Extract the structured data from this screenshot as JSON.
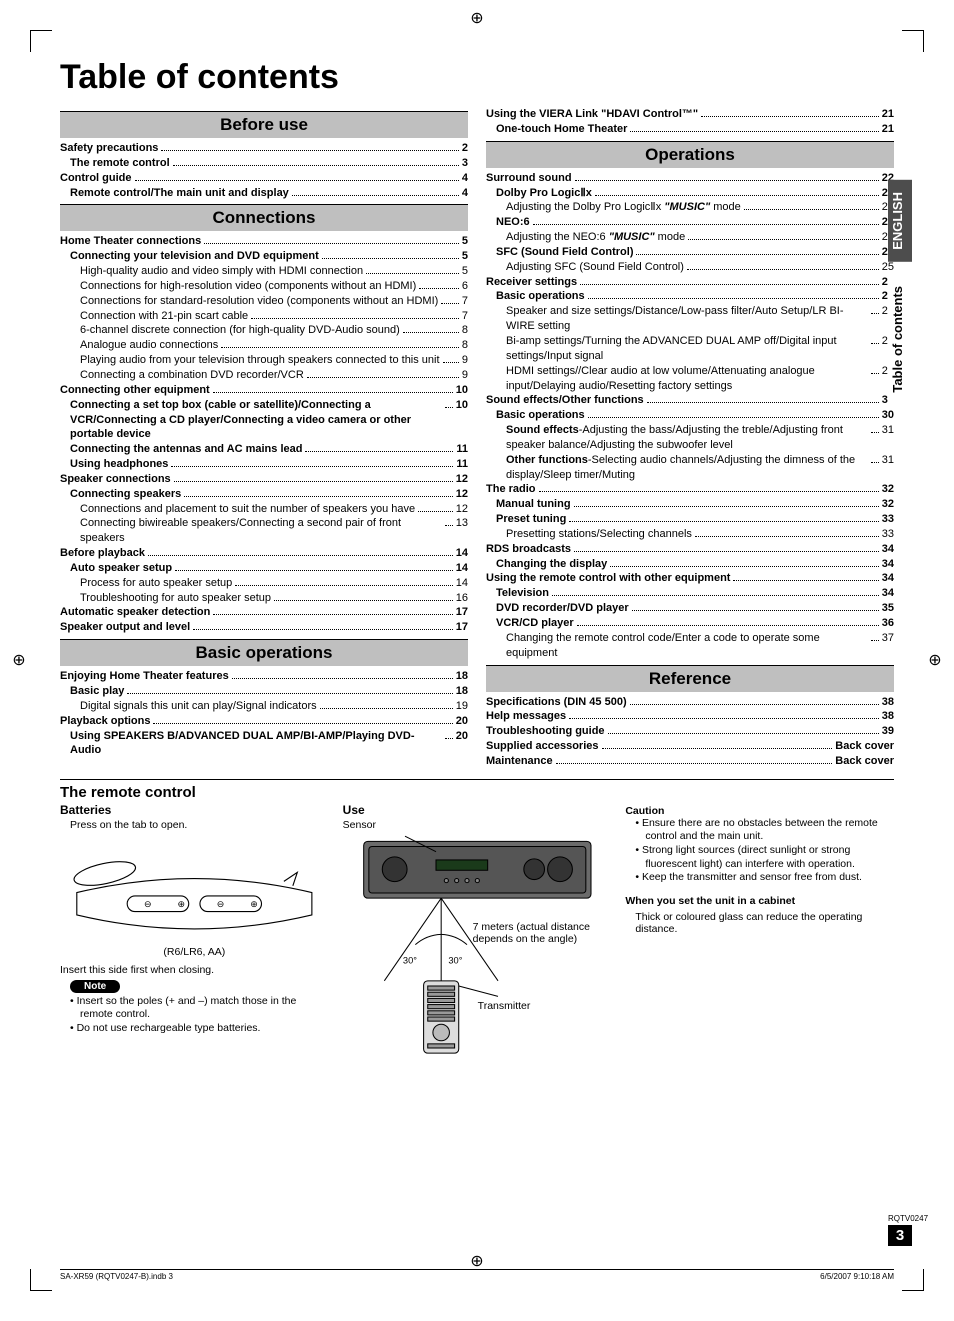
{
  "page_title": "Table of contents",
  "side_tabs": [
    {
      "label": "ENGLISH",
      "style": "dark"
    },
    {
      "label": "Table of contents",
      "style": "light"
    }
  ],
  "doc_ref": "RQTV0247",
  "page_number": "3",
  "footer": {
    "left": "SA-XR59 (RQTV0247-B).indb   3",
    "right": "6/5/2007   9:10:18 AM"
  },
  "sections_left": [
    {
      "heading": "Before use",
      "entries": [
        {
          "level": 0,
          "label": "Safety precautions",
          "page": "2"
        },
        {
          "level": 1,
          "label": "The remote control",
          "page": "3"
        },
        {
          "level": 0,
          "label": "Control guide",
          "page": "4"
        },
        {
          "level": 1,
          "label": "Remote control/The main unit and display",
          "page": "4"
        }
      ]
    },
    {
      "heading": "Connections",
      "entries": [
        {
          "level": 0,
          "label": "Home Theater connections",
          "page": "5"
        },
        {
          "level": 1,
          "label": "Connecting your television and DVD equipment",
          "page": "5"
        },
        {
          "level": 2,
          "label": "High-quality audio and video simply with HDMI connection",
          "page": "5"
        },
        {
          "level": 2,
          "label": "Connections for high-resolution video (components without an HDMI)",
          "page": "6"
        },
        {
          "level": 2,
          "label": "Connections for standard-resolution video (components without an HDMI)",
          "page": "7"
        },
        {
          "level": 2,
          "label": "Connection with 21-pin scart cable",
          "page": "7"
        },
        {
          "level": 2,
          "label": "6-channel discrete connection (for high-quality DVD-Audio sound)",
          "page": "8"
        },
        {
          "level": 2,
          "label": "Analogue audio connections",
          "page": "8"
        },
        {
          "level": 2,
          "label": "Playing audio from your television through speakers connected to this unit",
          "page": "9"
        },
        {
          "level": 2,
          "label": "Connecting a combination DVD recorder/VCR",
          "page": "9"
        },
        {
          "level": 0,
          "label": "Connecting other equipment",
          "page": "10"
        },
        {
          "level": 1,
          "label": "Connecting a set top box (cable or satellite)/Connecting a VCR/Connecting a CD player/Connecting a video camera or other portable device",
          "page": "10"
        },
        {
          "level": 1,
          "label": "Connecting the antennas and AC mains lead",
          "page": "11"
        },
        {
          "level": 1,
          "label": "Using headphones",
          "page": "11"
        },
        {
          "level": 0,
          "label": "Speaker connections",
          "page": "12"
        },
        {
          "level": 1,
          "label": "Connecting speakers",
          "page": "12"
        },
        {
          "level": 2,
          "label": "Connections and placement to suit the number of speakers you have",
          "page": "12"
        },
        {
          "level": 2,
          "label": "Connecting biwireable speakers/Connecting a second pair of front speakers",
          "page": "13"
        },
        {
          "level": 0,
          "label": "Before playback",
          "page": "14"
        },
        {
          "level": 1,
          "label": "Auto speaker setup",
          "page": "14"
        },
        {
          "level": 2,
          "label": "Process for auto speaker setup",
          "page": "14"
        },
        {
          "level": 2,
          "label": "Troubleshooting for auto speaker setup",
          "page": "16"
        },
        {
          "level": 0,
          "label": "Automatic speaker detection",
          "page": "17"
        },
        {
          "level": 0,
          "label": "Speaker output and level",
          "page": "17"
        }
      ]
    },
    {
      "heading": "Basic operations",
      "entries": [
        {
          "level": 0,
          "label": "Enjoying Home Theater features",
          "page": "18"
        },
        {
          "level": 1,
          "label": "Basic play",
          "page": "18"
        },
        {
          "level": 2,
          "label": "Digital signals this unit can play/Signal indicators",
          "page": "19"
        },
        {
          "level": 0,
          "label": "Playback options",
          "page": "20"
        },
        {
          "level": 1,
          "label": "Using SPEAKERS B/ADVANCED DUAL AMP/BI-AMP/Playing DVD-Audio",
          "page": "20"
        }
      ]
    }
  ],
  "sections_right": [
    {
      "heading": null,
      "entries": [
        {
          "level": 0,
          "label": "Using the VIERA Link \"HDAVI Control™\"",
          "page": "21"
        },
        {
          "level": 1,
          "label": "One-touch Home Theater",
          "page": "21"
        }
      ]
    },
    {
      "heading": "Operations",
      "entries": [
        {
          "level": 0,
          "label": "Surround sound",
          "page": "22"
        },
        {
          "level": 1,
          "label": "Dolby Pro LogicⅡx",
          "page": "22"
        },
        {
          "level": 2,
          "label_html": "Adjusting the Dolby Pro LogicⅡx <span class='ital'>\"MUSIC\"</span> mode",
          "page": "22"
        },
        {
          "level": 1,
          "label": "NEO:6",
          "page": "23"
        },
        {
          "level": 2,
          "label_html": "Adjusting the NEO:6 <span class='ital'>\"MUSIC\"</span> mode",
          "page": "23"
        },
        {
          "level": 1,
          "label": "SFC (Sound Field Control)",
          "page": "24"
        },
        {
          "level": 2,
          "label": "Adjusting SFC (Sound Field Control)",
          "page": "25"
        },
        {
          "level": 0,
          "label": "Receiver settings",
          "page": "26"
        },
        {
          "level": 1,
          "label": "Basic operations",
          "page": "26"
        },
        {
          "level": 2,
          "label": "Speaker and size settings/Distance/Low-pass filter/Auto Setup/LR BI-WIRE setting",
          "page": "27"
        },
        {
          "level": 2,
          "label": "Bi-amp settings/Turning the ADVANCED DUAL AMP off/Digital input settings/Input signal",
          "page": "28"
        },
        {
          "level": 2,
          "label": "HDMI settings//Clear audio at low volume/Attenuating analogue input/Delaying audio/Resetting factory settings",
          "page": "29"
        },
        {
          "level": 0,
          "label": "Sound effects/Other functions",
          "page": "30"
        },
        {
          "level": 1,
          "label": "Basic operations",
          "page": "30"
        },
        {
          "level": 2,
          "label_html": "<b>Sound effects</b>-Adjusting the bass/Adjusting the treble/Adjusting front speaker balance/Adjusting the subwoofer level",
          "page": "31"
        },
        {
          "level": 2,
          "label_html": "<b>Other functions</b>-Selecting audio channels/Adjusting the dimness of the display/Sleep timer/Muting",
          "page": "31"
        },
        {
          "level": 0,
          "label": "The radio",
          "page": "32"
        },
        {
          "level": 1,
          "label": "Manual tuning",
          "page": "32"
        },
        {
          "level": 1,
          "label": "Preset tuning",
          "page": "33"
        },
        {
          "level": 2,
          "label": "Presetting stations/Selecting channels",
          "page": "33"
        },
        {
          "level": 0,
          "label": "RDS broadcasts",
          "page": "34"
        },
        {
          "level": 1,
          "label": "Changing the display",
          "page": "34"
        },
        {
          "level": 0,
          "label": "Using the remote control with other equipment",
          "page": "34"
        },
        {
          "level": 1,
          "label": "Television",
          "page": "34"
        },
        {
          "level": 1,
          "label": "DVD recorder/DVD player",
          "page": "35"
        },
        {
          "level": 1,
          "label": "VCR/CD player",
          "page": "36"
        },
        {
          "level": 2,
          "label": "Changing the remote control code/Enter a code to operate some equipment",
          "page": "37"
        }
      ]
    },
    {
      "heading": "Reference",
      "entries": [
        {
          "level": 0,
          "label": "Specifications (DIN 45 500)",
          "page": "38"
        },
        {
          "level": 0,
          "label": "Help messages",
          "page": "38"
        },
        {
          "level": 0,
          "label": "Troubleshooting guide",
          "page": "39"
        },
        {
          "level": 0,
          "label": "Supplied accessories",
          "page": "Back cover"
        },
        {
          "level": 0,
          "label": "Maintenance",
          "page": "Back cover"
        }
      ]
    }
  ],
  "remote": {
    "title": "The remote control",
    "batteries": {
      "heading": "Batteries",
      "press_tab": "Press on the tab to open.",
      "battery_type": "(R6/LR6, AA)",
      "insert_side": "Insert this side first when closing.",
      "note_label": "Note",
      "notes": [
        "Insert so the poles (+ and –) match those in the remote control.",
        "Do not use rechargeable type batteries."
      ]
    },
    "use": {
      "heading": "Use",
      "sensor": "Sensor",
      "distance": "7 meters (actual distance depends on the angle)",
      "angle_left": "30°",
      "angle_right": "30°",
      "transmitter": "Transmitter"
    },
    "caution": {
      "heading": "Caution",
      "items": [
        "Ensure there are no obstacles between the remote control and the main unit.",
        "Strong light sources (direct sunlight or strong fluorescent light) can interfere with operation.",
        "Keep the transmitter and sensor free from dust."
      ],
      "cabinet_heading": "When you set the unit in a cabinet",
      "cabinet_text": "Thick or coloured glass can reduce the operating distance."
    }
  },
  "colors": {
    "section_bg": "#bfbfbf",
    "tab_dark_bg": "#4d4d4d",
    "text": "#000000",
    "background": "#ffffff"
  }
}
